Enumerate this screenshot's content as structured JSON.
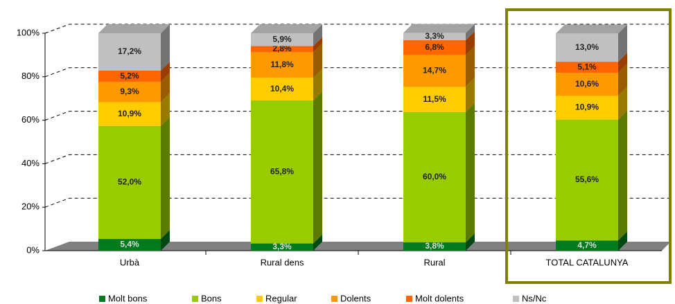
{
  "chart_data": {
    "type": "stacked_bar_3d",
    "categories": [
      "Urbà",
      "Rural dens",
      "Rural",
      "TOTAL CATALUNYA"
    ],
    "series": [
      {
        "name": "Molt bons",
        "color": "#007a1f",
        "values": [
          5.4,
          3.3,
          3.8,
          4.7
        ],
        "value_labels": [
          "5,4%",
          "3,3%",
          "3,8%",
          "4,7%"
        ]
      },
      {
        "name": "Bons",
        "color": "#99cc00",
        "values": [
          52.0,
          65.8,
          60.0,
          55.6
        ],
        "value_labels": [
          "52,0%",
          "65,8%",
          "60,0%",
          "55,6%"
        ]
      },
      {
        "name": "Regular",
        "color": "#ffcc00",
        "values": [
          10.9,
          10.4,
          11.5,
          10.9
        ],
        "value_labels": [
          "10,9%",
          "10,4%",
          "11,5%",
          "10,9%"
        ]
      },
      {
        "name": "Dolents",
        "color": "#ff9900",
        "values": [
          9.3,
          11.8,
          14.7,
          10.6
        ],
        "value_labels": [
          "9,3%",
          "11,8%",
          "14,7%",
          "10,6%"
        ]
      },
      {
        "name": "Molt dolents",
        "color": "#ff6600",
        "values": [
          5.2,
          2.8,
          6.8,
          5.1
        ],
        "value_labels": [
          "5,2%",
          "2,8%",
          "6,8%",
          "5,1%"
        ]
      },
      {
        "name": "Ns/Nc",
        "color": "#c0c0c0",
        "values": [
          17.2,
          5.9,
          3.3,
          13.0
        ],
        "value_labels": [
          "17,2%",
          "5,9%",
          "3,3%",
          "13,0%"
        ]
      }
    ],
    "ylim": [
      0,
      100
    ],
    "yticks": [
      {
        "value": 0,
        "label": "0%"
      },
      {
        "value": 20,
        "label": "20%"
      },
      {
        "value": 40,
        "label": "40%"
      },
      {
        "value": 60,
        "label": "60%"
      },
      {
        "value": 80,
        "label": "80%"
      },
      {
        "value": 100,
        "label": "100%"
      }
    ],
    "grid": true,
    "legend": "bottom"
  }
}
